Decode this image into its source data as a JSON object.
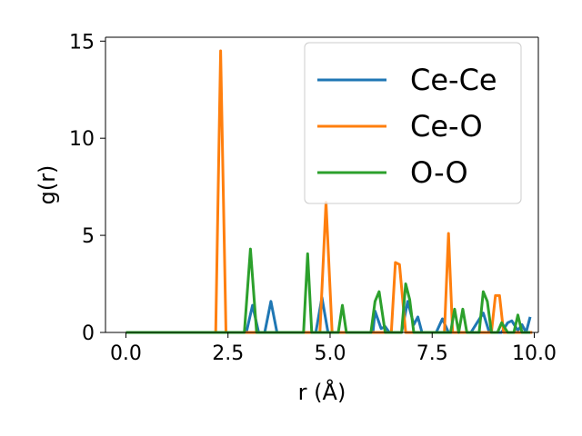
{
  "chart_data": {
    "type": "line",
    "xlabel": "r (Å)",
    "ylabel": "g(r)",
    "xlim": [
      -0.5,
      10.1
    ],
    "ylim": [
      0,
      15.2
    ],
    "xticks": [
      0.0,
      2.5,
      5.0,
      7.5,
      10.0
    ],
    "xtick_labels": [
      "0.0",
      "2.5",
      "5.0",
      "7.5",
      "10.0"
    ],
    "yticks": [
      0,
      5,
      10,
      15
    ],
    "ytick_labels": [
      "0",
      "5",
      "10",
      "15"
    ],
    "grid": false,
    "legend_position": "top-right",
    "series": [
      {
        "name": "Ce-Ce",
        "color": "#1f77b4",
        "x": [
          0.0,
          2.95,
          3.1,
          3.25,
          3.4,
          3.55,
          3.7,
          4.65,
          4.8,
          4.95,
          6.05,
          6.1,
          6.25,
          6.35,
          6.45,
          6.75,
          6.9,
          7.05,
          7.15,
          7.25,
          7.6,
          7.75,
          7.9,
          8.45,
          8.6,
          8.75,
          8.9,
          9.2,
          9.35,
          9.45,
          9.6,
          9.7,
          9.8,
          9.9
        ],
        "y": [
          0,
          0,
          1.4,
          0,
          0,
          1.6,
          0,
          0,
          1.8,
          0,
          0,
          1.1,
          0.2,
          0.3,
          0,
          0,
          1.6,
          0.4,
          0.8,
          0,
          0,
          0.7,
          0,
          0,
          0.5,
          1.0,
          0,
          0,
          0.5,
          0.6,
          0.1,
          0.4,
          0,
          0.8
        ]
      },
      {
        "name": "Ce-O",
        "color": "#ff7f0e",
        "x": [
          0.0,
          2.2,
          2.32,
          2.45,
          4.75,
          4.9,
          5.05,
          6.5,
          6.6,
          6.7,
          6.85,
          7.8,
          7.9,
          8.0,
          8.95,
          9.05,
          9.15,
          9.25,
          9.95
        ],
        "y": [
          0,
          0,
          14.5,
          0,
          0,
          6.7,
          0,
          0,
          3.6,
          3.5,
          0,
          0,
          5.1,
          0,
          0,
          1.9,
          1.9,
          0,
          0
        ]
      },
      {
        "name": "O-O",
        "color": "#2ca02c",
        "x": [
          0.0,
          2.9,
          3.05,
          3.2,
          4.35,
          4.45,
          4.55,
          5.2,
          5.3,
          5.4,
          6.0,
          6.1,
          6.2,
          6.35,
          6.75,
          6.85,
          6.95,
          7.05,
          7.95,
          8.05,
          8.15,
          8.25,
          8.35,
          8.65,
          8.75,
          8.85,
          8.95,
          9.1,
          9.2,
          9.35,
          9.5,
          9.6,
          9.7,
          9.9
        ],
        "y": [
          0,
          0,
          4.3,
          0,
          0,
          4.05,
          0,
          0,
          1.4,
          0,
          0,
          1.6,
          2.1,
          0,
          0,
          2.5,
          1.7,
          0,
          0,
          1.2,
          0,
          1.2,
          0,
          0,
          2.1,
          1.6,
          0,
          0,
          0.5,
          0,
          0,
          0.9,
          0,
          0
        ]
      }
    ]
  }
}
